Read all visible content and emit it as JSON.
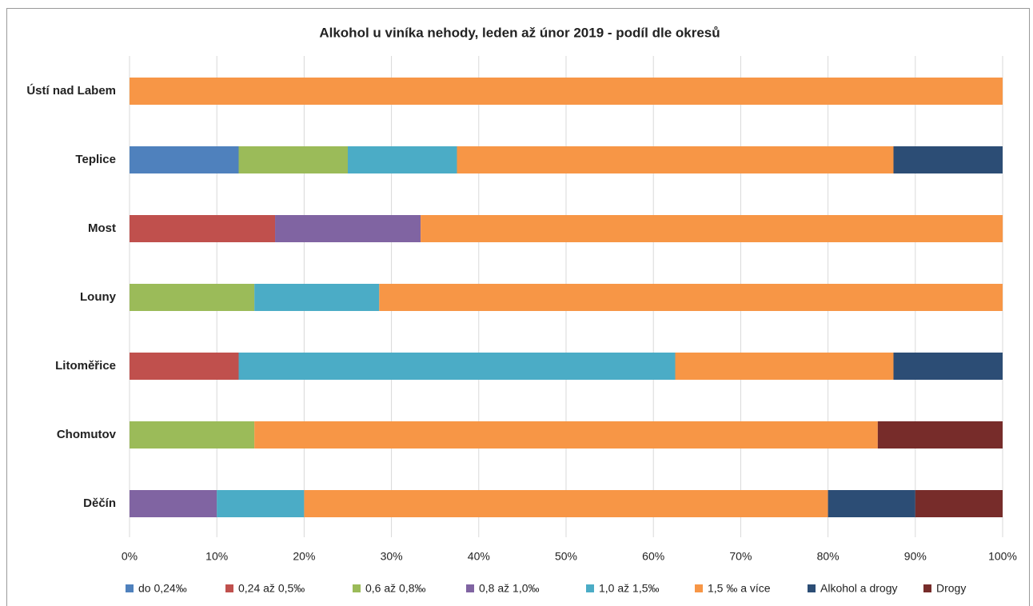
{
  "chart_data": {
    "type": "stacked_barh",
    "title": "Alkohol u viníka nehody, leden až únor 2019 - podíl dle okresů",
    "categories": [
      "Ústí nad Labem",
      "Teplice",
      "Most",
      "Louny",
      "Litoměřice",
      "Chomutov",
      "Děčín"
    ],
    "series": [
      {
        "name": "do 0,24‰",
        "color": "#4f81bd",
        "values": [
          0,
          12.5,
          0,
          0,
          0,
          0,
          0
        ]
      },
      {
        "name": "0,24 až 0,5‰",
        "color": "#c0504d",
        "values": [
          0,
          0,
          16.67,
          0,
          12.5,
          0,
          0
        ]
      },
      {
        "name": "0,6 až 0,8‰",
        "color": "#9bbb59",
        "values": [
          0,
          12.5,
          0,
          14.3,
          0,
          14.3,
          0
        ]
      },
      {
        "name": "0,8 až 1,0‰",
        "color": "#8064a2",
        "values": [
          0,
          0,
          16.67,
          0,
          0,
          0,
          10
        ]
      },
      {
        "name": "1,0 až 1,5‰",
        "color": "#4bacc6",
        "values": [
          0,
          12.5,
          0,
          14.3,
          50,
          0,
          10
        ]
      },
      {
        "name": "1,5 ‰ a více",
        "color": "#f79646",
        "values": [
          100,
          50,
          66.67,
          71.4,
          25,
          71.4,
          60
        ]
      },
      {
        "name": "Alkohol a drogy",
        "color": "#2c4d75",
        "values": [
          0,
          12.5,
          0,
          0,
          12.5,
          0,
          10
        ]
      },
      {
        "name": "Drogy",
        "color": "#772c2a",
        "values": [
          0,
          0,
          0,
          0,
          0,
          14.3,
          10
        ]
      }
    ],
    "xlim": [
      0,
      100
    ],
    "xticks": [
      {
        "value": 0,
        "label": "0%"
      },
      {
        "value": 10,
        "label": "10%"
      },
      {
        "value": 20,
        "label": "20%"
      },
      {
        "value": 30,
        "label": "30%"
      },
      {
        "value": 40,
        "label": "40%"
      },
      {
        "value": 50,
        "label": "50%"
      },
      {
        "value": 60,
        "label": "60%"
      },
      {
        "value": 70,
        "label": "70%"
      },
      {
        "value": 80,
        "label": "80%"
      },
      {
        "value": 90,
        "label": "90%"
      },
      {
        "value": 100,
        "label": "100%"
      }
    ],
    "grid": true,
    "legend": "bottom"
  }
}
